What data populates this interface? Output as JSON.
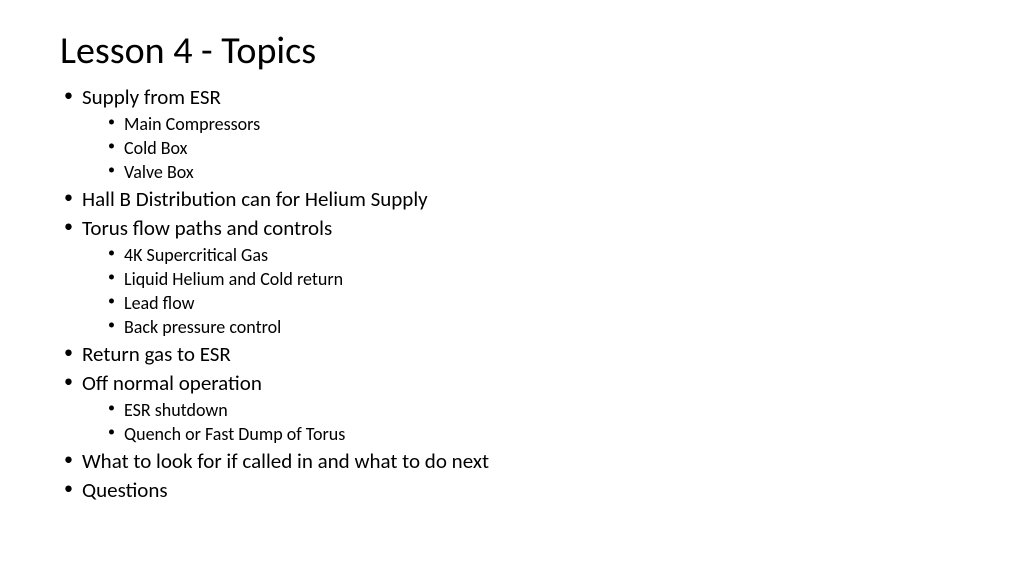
{
  "title": "Lesson 4 - Topics",
  "items": [
    {
      "label": "Supply from ESR",
      "sub": [
        "Main Compressors",
        "Cold Box",
        "Valve Box"
      ]
    },
    {
      "label": "Hall B Distribution can for Helium Supply",
      "sub": []
    },
    {
      "label": "Torus flow paths and controls",
      "sub": [
        "4K Supercritical Gas",
        "Liquid Helium and Cold return",
        "Lead flow",
        "Back pressure control"
      ]
    },
    {
      "label": "Return gas to ESR",
      "sub": []
    },
    {
      "label": "Off normal operation",
      "sub": [
        "ESR shutdown",
        "Quench or Fast Dump of Torus"
      ]
    },
    {
      "label": "What to look for if called in and what to do next",
      "sub": []
    },
    {
      "label": "Questions",
      "sub": []
    }
  ],
  "style": {
    "background_color": "#ffffff",
    "text_color": "#000000",
    "title_fontsize": 38,
    "level1_fontsize": 21,
    "level2_fontsize": 18,
    "font_family": "Calibri"
  }
}
